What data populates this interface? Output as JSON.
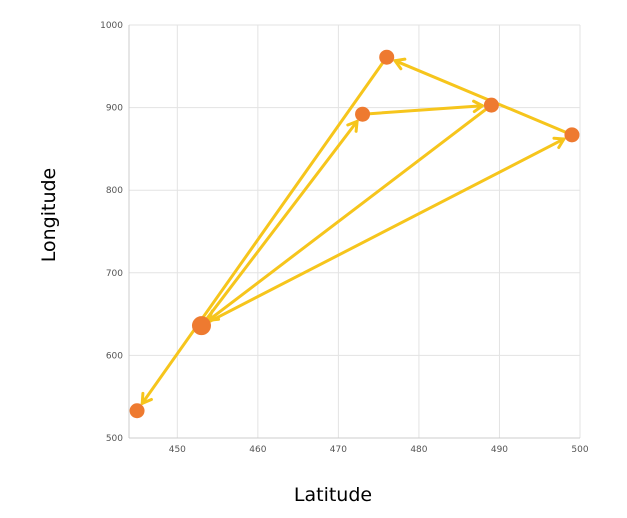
{
  "chart_data": {
    "type": "scatter",
    "title": "",
    "xlabel": "Latitude",
    "ylabel": "Longitude",
    "xlim": [
      444,
      500
    ],
    "ylim": [
      500,
      1000
    ],
    "xticks": [
      "450",
      "460",
      "470",
      "480",
      "490",
      "500"
    ],
    "yticks": [
      "500",
      "600",
      "700",
      "800",
      "900",
      "1000"
    ],
    "grid": true,
    "legend": "none",
    "points": [
      {
        "x": 445,
        "y": 533
      },
      {
        "x": 453,
        "y": 636,
        "highlight": true
      },
      {
        "x": 473,
        "y": 892
      },
      {
        "x": 476,
        "y": 961
      },
      {
        "x": 489,
        "y": 903
      },
      {
        "x": 499,
        "y": 867
      }
    ],
    "arrows": [
      {
        "from": [
          453,
          636
        ],
        "to": [
          473,
          892
        ]
      },
      {
        "from": [
          473,
          892
        ],
        "to": [
          489,
          903
        ]
      },
      {
        "from": [
          489,
          903
        ],
        "to": [
          453,
          636
        ]
      },
      {
        "from": [
          453,
          636
        ],
        "to": [
          499,
          867
        ]
      },
      {
        "from": [
          499,
          867
        ],
        "to": [
          476,
          961
        ]
      },
      {
        "from": [
          476,
          961
        ],
        "to": [
          445,
          533
        ]
      }
    ],
    "colors": {
      "point": "#ee7a30",
      "arrow": "#f6c51c",
      "grid": "#e3e3e3",
      "axis": "#cccccc"
    }
  }
}
